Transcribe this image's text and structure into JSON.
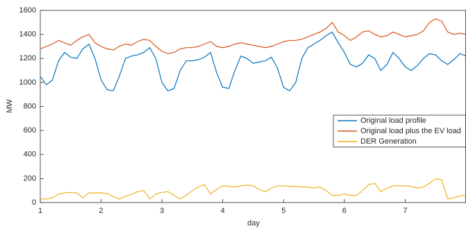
{
  "chart_data": {
    "type": "line",
    "x_label": "day",
    "y_label": "MW",
    "xlim": [
      1,
      8
    ],
    "ylim": [
      0,
      1600
    ],
    "xticks": [
      1,
      2,
      3,
      4,
      5,
      6,
      7
    ],
    "yticks": [
      0,
      200,
      400,
      600,
      800,
      1000,
      1200,
      1400,
      1600
    ],
    "legend_position": "right",
    "x": [
      1,
      1.1,
      1.2,
      1.3,
      1.4,
      1.5,
      1.6,
      1.7,
      1.8,
      1.9,
      2,
      2.1,
      2.2,
      2.3,
      2.4,
      2.5,
      2.6,
      2.7,
      2.8,
      2.9,
      3,
      3.1,
      3.2,
      3.3,
      3.4,
      3.5,
      3.6,
      3.7,
      3.8,
      3.9,
      4,
      4.1,
      4.2,
      4.3,
      4.4,
      4.5,
      4.6,
      4.7,
      4.8,
      4.9,
      5,
      5.1,
      5.2,
      5.3,
      5.4,
      5.5,
      5.6,
      5.7,
      5.8,
      5.9,
      6,
      6.1,
      6.2,
      6.3,
      6.4,
      6.5,
      6.6,
      6.7,
      6.8,
      6.9,
      7,
      7.1,
      7.2,
      7.3,
      7.4,
      7.5,
      7.6,
      7.7,
      7.8,
      7.9,
      8
    ],
    "series": [
      {
        "name": "Original load profile",
        "color": "#0072BD",
        "values": [
          1050,
          980,
          1020,
          1180,
          1250,
          1210,
          1200,
          1280,
          1320,
          1200,
          1020,
          940,
          930,
          1050,
          1200,
          1220,
          1230,
          1250,
          1290,
          1200,
          1000,
          930,
          950,
          1100,
          1180,
          1180,
          1190,
          1210,
          1250,
          1080,
          960,
          950,
          1100,
          1220,
          1200,
          1160,
          1170,
          1180,
          1210,
          1120,
          960,
          930,
          1000,
          1200,
          1290,
          1320,
          1350,
          1390,
          1420,
          1330,
          1250,
          1150,
          1130,
          1160,
          1230,
          1200,
          1100,
          1150,
          1250,
          1200,
          1130,
          1100,
          1140,
          1200,
          1240,
          1230,
          1180,
          1150,
          1190,
          1240,
          1220
        ]
      },
      {
        "name": "Original load plus the EV load",
        "color": "#D95319",
        "values": [
          1280,
          1300,
          1320,
          1350,
          1330,
          1310,
          1350,
          1380,
          1400,
          1330,
          1300,
          1280,
          1270,
          1300,
          1320,
          1310,
          1340,
          1360,
          1350,
          1300,
          1260,
          1240,
          1250,
          1280,
          1290,
          1290,
          1300,
          1320,
          1340,
          1300,
          1290,
          1300,
          1320,
          1330,
          1320,
          1310,
          1300,
          1290,
          1300,
          1320,
          1340,
          1350,
          1350,
          1360,
          1380,
          1400,
          1420,
          1450,
          1500,
          1420,
          1390,
          1350,
          1380,
          1420,
          1430,
          1400,
          1380,
          1390,
          1420,
          1400,
          1380,
          1390,
          1400,
          1430,
          1500,
          1530,
          1510,
          1420,
          1400,
          1410,
          1400
        ]
      },
      {
        "name": "DER Generation",
        "color": "#EDB120",
        "values": [
          30,
          30,
          40,
          70,
          80,
          85,
          80,
          40,
          80,
          80,
          80,
          75,
          50,
          30,
          50,
          70,
          90,
          100,
          30,
          70,
          85,
          90,
          60,
          30,
          60,
          100,
          130,
          150,
          70,
          110,
          140,
          135,
          130,
          140,
          145,
          140,
          110,
          90,
          120,
          140,
          140,
          135,
          135,
          130,
          130,
          120,
          130,
          100,
          60,
          60,
          70,
          60,
          60,
          100,
          150,
          160,
          90,
          120,
          140,
          140,
          140,
          135,
          120,
          130,
          160,
          200,
          190,
          30,
          40,
          55,
          60
        ]
      }
    ]
  }
}
